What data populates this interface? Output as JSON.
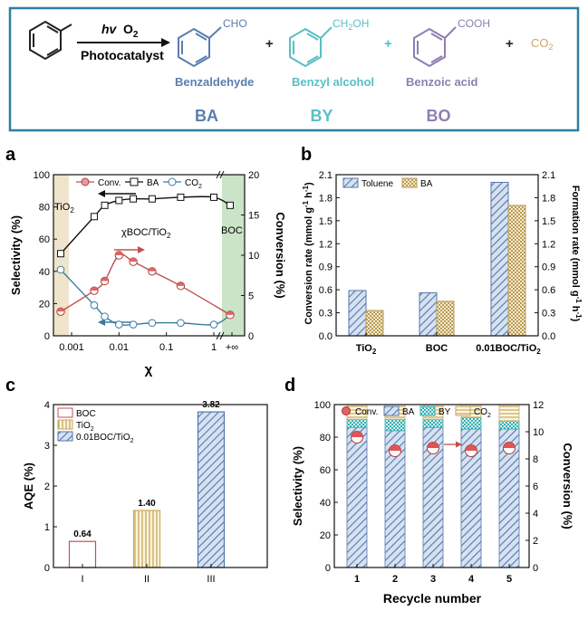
{
  "scheme": {
    "hv": "hv",
    "o2": "O",
    "o2_sub": "2",
    "photocatalyst": "Photocatalyst",
    "plus": "+",
    "products": [
      {
        "group": "CHO",
        "name": "Benzaldehyde",
        "abbr": "BA",
        "color": "#5a7eb0"
      },
      {
        "group": "CH",
        "group_sub": "2",
        "group_tail": "OH",
        "name": "Benzyl alcohol",
        "abbr": "BY",
        "color": "#58c0c4"
      },
      {
        "group": "COOH",
        "name": "Benzoic acid",
        "abbr": "BO",
        "color": "#8d7fb0"
      }
    ],
    "co2": "CO",
    "co2_sub": "2",
    "co2_color": "#c9a868",
    "frame_color": "#2f7ea2"
  },
  "chart_data": [
    {
      "panel": "a",
      "type": "line",
      "xlabel": "χ",
      "ylabel_left": "Selectivity (%)",
      "ylabel_right": "Conversion (%)",
      "xticks": [
        "0.001",
        "0.01",
        "0.1",
        "1",
        "+∞"
      ],
      "ylim_left": [
        0,
        100
      ],
      "ylim_right": [
        0,
        20
      ],
      "yticks_left": [
        "0",
        "20",
        "40",
        "60",
        "80",
        "100"
      ],
      "yticks_right": [
        "0",
        "5",
        "10",
        "15",
        "20"
      ],
      "region_labels": {
        "left": "TiO",
        "left_sub": "2",
        "middle": "χBOC/TiO",
        "middle_sub": "2",
        "right": "BOC"
      },
      "legend": {
        "conv": "Conv.",
        "ba": "BA",
        "co2": "CO",
        "co2_sub": "2"
      },
      "x": [
        "0",
        "0.003",
        "0.005",
        "0.01",
        "0.02",
        "0.05",
        "0.2",
        "1",
        "+∞"
      ],
      "series": [
        {
          "name": "BA",
          "axis": "left",
          "values": [
            51,
            74,
            81,
            84,
            85,
            85,
            86,
            86,
            81
          ]
        },
        {
          "name": "CO2",
          "axis": "left",
          "values": [
            41,
            19,
            12,
            7,
            7,
            8,
            8,
            7,
            13
          ]
        },
        {
          "name": "Conv.",
          "axis": "right",
          "values": [
            3,
            5.6,
            6.8,
            10,
            9.2,
            8,
            6.2,
            null,
            2.6
          ]
        }
      ]
    },
    {
      "panel": "b",
      "type": "bar",
      "ylabel_left": "Conversion rate (mmol g",
      "ylabel_right": "Formation rate (mmol g",
      "ylabel_unit_sup": "-1",
      "ylabel_unit_h": " h",
      "ylim": [
        0,
        2.1
      ],
      "yticks": [
        "0.0",
        "0.3",
        "0.6",
        "0.9",
        "1.2",
        "1.5",
        "1.8",
        "2.1"
      ],
      "categories": [
        {
          "main": "TiO",
          "sub": "2"
        },
        {
          "main": "BOC",
          "sub": ""
        },
        {
          "main": "0.01BOC/TiO",
          "sub": "2"
        }
      ],
      "series": [
        {
          "name": "Toluene",
          "values": [
            0.59,
            0.56,
            2.0
          ]
        },
        {
          "name": "BA",
          "values": [
            0.33,
            0.45,
            1.7
          ]
        }
      ]
    },
    {
      "panel": "c",
      "type": "bar",
      "ylabel": "AQE (%)",
      "ylim": [
        0,
        4
      ],
      "yticks": [
        "0",
        "1",
        "2",
        "3",
        "4"
      ],
      "categories": [
        "I",
        "II",
        "III"
      ],
      "values": [
        0.64,
        1.4,
        3.82
      ],
      "value_labels": [
        "0.64",
        "1.40",
        "3.82"
      ],
      "legend": [
        {
          "main": "BOC",
          "sub": ""
        },
        {
          "main": "TiO",
          "sub": "2"
        },
        {
          "main": "0.01BOC/TiO",
          "sub": "2"
        }
      ]
    },
    {
      "panel": "d",
      "type": "bar",
      "xlabel": "Recycle number",
      "ylabel_left": "Selectivity (%)",
      "ylabel_right": "Conversion (%)",
      "ylim_left": [
        0,
        100
      ],
      "ylim_right": [
        0,
        12
      ],
      "yticks_left": [
        "0",
        "20",
        "40",
        "60",
        "80",
        "100"
      ],
      "yticks_right": [
        "0",
        "2",
        "4",
        "6",
        "8",
        "10",
        "12"
      ],
      "categories": [
        "1",
        "2",
        "3",
        "4",
        "5"
      ],
      "legend": {
        "conv": "Conv.",
        "ba": "BA",
        "by": "BY",
        "co2": "CO",
        "co2_sub": "2"
      },
      "series": [
        {
          "name": "BA",
          "values": [
            86,
            84,
            86,
            85,
            85
          ]
        },
        {
          "name": "BY",
          "values": [
            5,
            7,
            5,
            7,
            5
          ]
        },
        {
          "name": "CO2",
          "values": [
            9,
            9,
            9,
            8,
            10
          ]
        },
        {
          "name": "Conv.",
          "axis": "right",
          "values": [
            9.6,
            8.6,
            8.8,
            8.6,
            8.8
          ]
        }
      ]
    }
  ],
  "panel_labels": [
    "a",
    "b",
    "c",
    "d"
  ]
}
